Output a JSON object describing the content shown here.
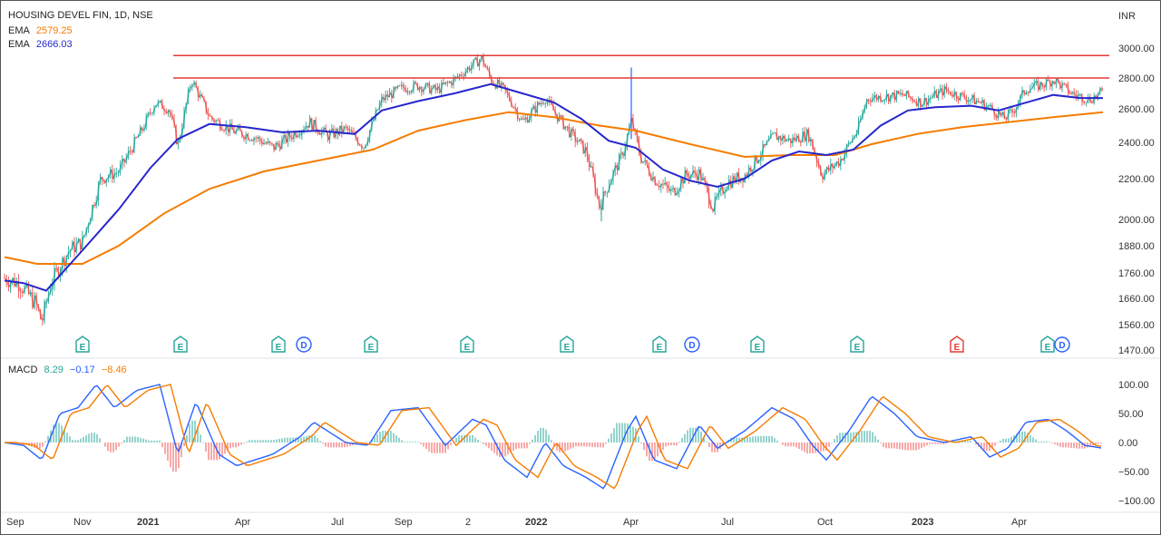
{
  "header": {
    "symbol": "HOUSING DEVEL FIN, 1D, NSE",
    "ema_fast_label": "EMA",
    "ema_fast_value": "2579.25",
    "ema_slow_label": "EMA",
    "ema_slow_value": "2666.03",
    "currency": "INR"
  },
  "macd": {
    "label": "MACD",
    "hist_value": "8.29",
    "macd_value": "−0.17",
    "signal_value": "−8.46"
  },
  "colors": {
    "up": "#26a69a",
    "down": "#ef5350",
    "ema200": "#f57c00",
    "ema50": "#2727cc",
    "resistance": "#e53935",
    "macd_line": "#2962ff",
    "signal_line": "#f57c00",
    "earnings": "#26a69a",
    "earnings_neg": "#e53935",
    "dividend": "#2962ff"
  },
  "price_axis": {
    "ticks": [
      "3000.00",
      "2800.00",
      "2600.00",
      "2400.00",
      "2200.00",
      "2000.00",
      "1880.00",
      "1760.00",
      "1660.00",
      "1560.00",
      "1470.00"
    ]
  },
  "macd_axis": {
    "ticks": [
      "100.00",
      "50.00",
      "0.00",
      "−50.00",
      "−100.00"
    ]
  },
  "x_axis": {
    "labels": [
      {
        "text": "Sep",
        "bold": false
      },
      {
        "text": "Nov",
        "bold": false
      },
      {
        "text": "2021",
        "bold": true
      },
      {
        "text": "Apr",
        "bold": false
      },
      {
        "text": "Jul",
        "bold": false
      },
      {
        "text": "Sep",
        "bold": false
      },
      {
        "text": "2",
        "bold": false
      },
      {
        "text": "2022",
        "bold": true
      },
      {
        "text": "Apr",
        "bold": false
      },
      {
        "text": "Jul",
        "bold": false
      },
      {
        "text": "Oct",
        "bold": false
      },
      {
        "text": "2023",
        "bold": true
      },
      {
        "text": "Apr",
        "bold": false
      }
    ]
  },
  "events": [
    {
      "type": "E",
      "label": "E"
    },
    {
      "type": "E",
      "label": "E"
    },
    {
      "type": "E",
      "label": "E"
    },
    {
      "type": "D",
      "label": "D"
    },
    {
      "type": "E",
      "label": "E"
    },
    {
      "type": "E",
      "label": "E"
    },
    {
      "type": "E",
      "label": "E"
    },
    {
      "type": "E",
      "label": "E"
    },
    {
      "type": "D",
      "label": "D"
    },
    {
      "type": "E",
      "label": "E"
    },
    {
      "type": "E",
      "label": "E"
    },
    {
      "type": "E-neg",
      "label": "E"
    },
    {
      "type": "E",
      "label": "E"
    },
    {
      "type": "D",
      "label": "D"
    }
  ],
  "chart_data": {
    "type": "line",
    "title": "HOUSING DEVEL FIN, 1D, NSE",
    "price_range": [
      1470,
      3000
    ],
    "resistance_levels": [
      2950,
      2800
    ],
    "series": [
      {
        "name": "EMA 2579.25"
      },
      {
        "name": "EMA 2666.03"
      }
    ],
    "macd": {
      "range": [
        -100,
        100
      ]
    }
  }
}
